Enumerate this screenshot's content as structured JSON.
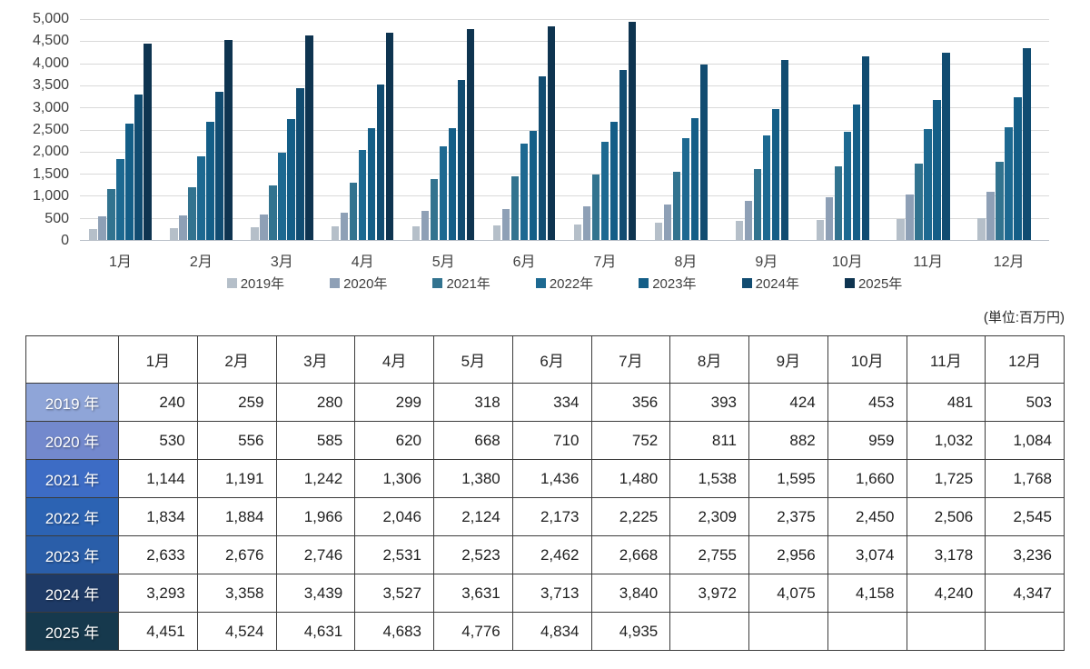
{
  "unit_label": "(単位:百万円)",
  "chart_data": {
    "type": "bar",
    "title": "",
    "categories": [
      "1月",
      "2月",
      "3月",
      "4月",
      "5月",
      "6月",
      "7月",
      "8月",
      "9月",
      "10月",
      "11月",
      "12月"
    ],
    "series": [
      {
        "name": "2019年",
        "color": "#b5bfc9",
        "values": [
          240,
          259,
          280,
          299,
          318,
          334,
          356,
          393,
          424,
          453,
          481,
          503
        ]
      },
      {
        "name": "2020年",
        "color": "#8ea0b6",
        "values": [
          530,
          556,
          585,
          620,
          668,
          710,
          752,
          811,
          882,
          959,
          1032,
          1084
        ]
      },
      {
        "name": "2021年",
        "color": "#32738f",
        "values": [
          1144,
          1191,
          1242,
          1306,
          1380,
          1436,
          1480,
          1538,
          1595,
          1660,
          1725,
          1768
        ]
      },
      {
        "name": "2022年",
        "color": "#1d6991",
        "values": [
          1834,
          1884,
          1966,
          2046,
          2124,
          2173,
          2225,
          2309,
          2375,
          2450,
          2506,
          2545
        ]
      },
      {
        "name": "2023年",
        "color": "#145e87",
        "values": [
          2633,
          2676,
          2746,
          2531,
          2523,
          2462,
          2668,
          2755,
          2956,
          3074,
          3178,
          3236
        ]
      },
      {
        "name": "2024年",
        "color": "#114c71",
        "values": [
          3293,
          3358,
          3439,
          3527,
          3631,
          3713,
          3840,
          3972,
          4075,
          4158,
          4240,
          4347
        ]
      },
      {
        "name": "2025年",
        "color": "#0e3450",
        "values": [
          4451,
          4524,
          4631,
          4683,
          4776,
          4834,
          4935,
          null,
          null,
          null,
          null,
          null
        ]
      }
    ],
    "ylim": [
      0,
      5000
    ],
    "ytick_step": 500,
    "ytick_labels": [
      "5,000",
      "4,500",
      "4,000",
      "3,500",
      "3,000",
      "2,500",
      "2,000",
      "1,500",
      "1,000",
      "500",
      "0"
    ],
    "grid": true,
    "legend_position": "bottom"
  },
  "table": {
    "corner_label": "",
    "col_headers": [
      "1月",
      "2月",
      "3月",
      "4月",
      "5月",
      "6月",
      "7月",
      "8月",
      "9月",
      "10月",
      "11月",
      "12月"
    ],
    "rows": [
      {
        "label": "2019 年",
        "color": "#8fa5d8",
        "values": [
          "240",
          "259",
          "280",
          "299",
          "318",
          "334",
          "356",
          "393",
          "424",
          "453",
          "481",
          "503"
        ]
      },
      {
        "label": "2020 年",
        "color": "#7389cd",
        "values": [
          "530",
          "556",
          "585",
          "620",
          "668",
          "710",
          "752",
          "811",
          "882",
          "959",
          "1,032",
          "1,084"
        ]
      },
      {
        "label": "2021 年",
        "color": "#3d6cc5",
        "values": [
          "1,144",
          "1,191",
          "1,242",
          "1,306",
          "1,380",
          "1,436",
          "1,480",
          "1,538",
          "1,595",
          "1,660",
          "1,725",
          "1,768"
        ]
      },
      {
        "label": "2022 年",
        "color": "#2c63b3",
        "values": [
          "1,834",
          "1,884",
          "1,966",
          "2,046",
          "2,124",
          "2,173",
          "2,225",
          "2,309",
          "2,375",
          "2,450",
          "2,506",
          "2,545"
        ]
      },
      {
        "label": "2023 年",
        "color": "#2a5ea9",
        "values": [
          "2,633",
          "2,676",
          "2,746",
          "2,531",
          "2,523",
          "2,462",
          "2,668",
          "2,755",
          "2,956",
          "3,074",
          "3,178",
          "3,236"
        ]
      },
      {
        "label": "2024 年",
        "color": "#1e3a66",
        "values": [
          "3,293",
          "3,358",
          "3,439",
          "3,527",
          "3,631",
          "3,713",
          "3,840",
          "3,972",
          "4,075",
          "4,158",
          "4,240",
          "4,347"
        ]
      },
      {
        "label": "2025 年",
        "color": "#16394d",
        "values": [
          "4,451",
          "4,524",
          "4,631",
          "4,683",
          "4,776",
          "4,834",
          "4,935",
          "",
          "",
          "",
          "",
          ""
        ]
      }
    ]
  }
}
